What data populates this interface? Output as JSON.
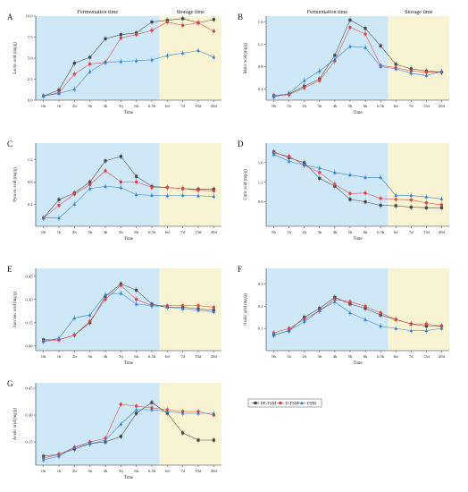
{
  "legend": {
    "series": [
      {
        "name": "PP-FSM",
        "color": "#444444",
        "marker": "square"
      },
      {
        "name": "P-FSM",
        "color": "#e0443e",
        "marker": "circle"
      },
      {
        "name": "FSM",
        "color": "#2f7fd6",
        "marker": "triangle"
      }
    ]
  },
  "chart_data": [
    {
      "type": "line",
      "letter": "A",
      "title": "",
      "xlabel": "Time",
      "ylabel": "Lactic acid (mg/g)",
      "regions": {
        "left": "Fermentation time",
        "right": "Storage time"
      },
      "categories": [
        "0h",
        "1h",
        "2h",
        "3h",
        "4h",
        "5h",
        "6h",
        "6.5h",
        "6d",
        "7d",
        "15d",
        "20d"
      ],
      "ylim": [
        0,
        10.0
      ],
      "yticks": [
        "0.0",
        "2.5",
        "5.0",
        "7.5",
        "10.0"
      ],
      "series": [
        {
          "values": [
            0.5,
            1.2,
            4.4,
            5.1,
            7.3,
            7.8,
            8.0,
            9.3,
            9.5,
            9.7,
            9.2,
            9.6
          ]
        },
        {
          "values": [
            0.5,
            0.9,
            3.1,
            4.3,
            4.5,
            7.4,
            7.8,
            8.3,
            9.3,
            8.9,
            9.2,
            8.2
          ]
        },
        {
          "values": [
            0.5,
            0.8,
            1.3,
            3.4,
            4.5,
            4.6,
            4.7,
            4.8,
            5.3,
            5.6,
            5.9,
            5.1
          ]
        }
      ]
    },
    {
      "type": "line",
      "letter": "B",
      "title": "",
      "xlabel": "Time",
      "ylabel": "Malic acid (mg/g)",
      "regions": {
        "left": "Fermentation time",
        "right": "Storage time"
      },
      "categories": [
        "0h",
        "1h",
        "2h",
        "3h",
        "4h",
        "5h",
        "6h",
        "6.5h",
        "6d",
        "7d",
        "15d",
        "20d"
      ],
      "ylim": [
        0.2,
        1.7
      ],
      "yticks": [
        "0.4",
        "0.8",
        "1.2",
        "1.6"
      ],
      "series": [
        {
          "values": [
            0.28,
            0.31,
            0.45,
            0.58,
            1.0,
            1.63,
            1.48,
            1.17,
            0.84,
            0.76,
            0.72,
            0.7
          ]
        },
        {
          "values": [
            0.27,
            0.3,
            0.42,
            0.55,
            0.9,
            1.5,
            1.38,
            0.82,
            0.78,
            0.72,
            0.7,
            0.7
          ]
        },
        {
          "values": [
            0.26,
            0.32,
            0.55,
            0.72,
            0.93,
            1.16,
            1.14,
            0.8,
            0.76,
            0.68,
            0.64,
            0.71
          ]
        }
      ]
    },
    {
      "type": "line",
      "letter": "C",
      "title": "",
      "xlabel": "Time",
      "ylabel": "Pyruvic acid (mg/g)",
      "regions": {
        "left": "",
        "right": ""
      },
      "categories": [
        "0h",
        "1h",
        "2h",
        "3h",
        "4h",
        "5h",
        "6h",
        "6.5h",
        "6d",
        "7d",
        "15d",
        "20d"
      ],
      "ylim": [
        0,
        1.5
      ],
      "yticks": [
        "0.4",
        "0.8",
        "1.2"
      ],
      "series": [
        {
          "values": [
            0.15,
            0.48,
            0.6,
            0.8,
            1.18,
            1.26,
            0.9,
            0.72,
            0.7,
            0.68,
            0.67,
            0.67
          ]
        },
        {
          "values": [
            0.15,
            0.38,
            0.58,
            0.75,
            1.0,
            0.8,
            0.8,
            0.7,
            0.7,
            0.68,
            0.65,
            0.64
          ]
        },
        {
          "values": [
            0.15,
            0.15,
            0.4,
            0.68,
            0.72,
            0.7,
            0.57,
            0.56,
            0.55,
            0.56,
            0.55,
            0.54
          ]
        }
      ]
    },
    {
      "type": "line",
      "letter": "D",
      "title": "",
      "xlabel": "Time",
      "ylabel": "Citric acid (mg/g)",
      "regions": {
        "left": "",
        "right": ""
      },
      "categories": [
        "0h",
        "1h",
        "2h",
        "3h",
        "4h",
        "5h",
        "6h",
        "6.5h",
        "6d",
        "7d",
        "15d",
        "20d"
      ],
      "ylim": [
        0.3,
        2.0
      ],
      "yticks": [
        "0.8",
        "1.2",
        "1.6"
      ],
      "series": [
        {
          "values": [
            1.82,
            1.7,
            1.6,
            1.28,
            1.12,
            0.85,
            0.8,
            0.73,
            0.72,
            0.69,
            0.68,
            0.68
          ]
        },
        {
          "values": [
            1.8,
            1.73,
            1.55,
            1.4,
            1.16,
            0.97,
            0.98,
            0.87,
            0.85,
            0.84,
            0.78,
            0.74
          ]
        },
        {
          "values": [
            1.77,
            1.63,
            1.55,
            1.49,
            1.4,
            1.35,
            1.3,
            1.3,
            0.93,
            0.93,
            0.9,
            0.86
          ]
        }
      ]
    },
    {
      "type": "line",
      "letter": "E",
      "title": "",
      "xlabel": "Time",
      "ylabel": "Succinic acid (mg/g)",
      "regions": {
        "left": "",
        "right": ""
      },
      "categories": [
        "0h",
        "1h",
        "2h",
        "3h",
        "4h",
        "5h",
        "6h",
        "6.5h",
        "6d",
        "7d",
        "15d",
        "20d"
      ],
      "ylim": [
        -0.03,
        0.5
      ],
      "yticks": [
        "0.00",
        "0.15",
        "0.30",
        "0.45"
      ],
      "series": [
        {
          "values": [
            0.04,
            0.04,
            0.07,
            0.15,
            0.32,
            0.4,
            0.36,
            0.27,
            0.25,
            0.25,
            0.24,
            0.23
          ]
        },
        {
          "values": [
            0.03,
            0.04,
            0.07,
            0.16,
            0.3,
            0.39,
            0.3,
            0.26,
            0.26,
            0.26,
            0.26,
            0.25
          ]
        },
        {
          "values": [
            0.03,
            0.05,
            0.18,
            0.2,
            0.33,
            0.34,
            0.27,
            0.26,
            0.25,
            0.24,
            0.23,
            0.22
          ]
        }
      ]
    },
    {
      "type": "line",
      "letter": "F",
      "title": "",
      "xlabel": "Time",
      "ylabel": "Oxalic acid (mg/g)",
      "regions": {
        "left": "",
        "right": ""
      },
      "categories": [
        "0h",
        "1h",
        "2h",
        "3h",
        "4h",
        "5h",
        "6h",
        "6.5h",
        "6d",
        "7d",
        "15d",
        "20d"
      ],
      "ylim": [
        0.0,
        0.37
      ],
      "yticks": [
        "0.1",
        "0.2",
        "0.3"
      ],
      "series": [
        {
          "values": [
            0.07,
            0.09,
            0.15,
            0.19,
            0.24,
            0.21,
            0.19,
            0.16,
            0.14,
            0.12,
            0.11,
            0.11
          ]
        },
        {
          "values": [
            0.08,
            0.1,
            0.14,
            0.18,
            0.23,
            0.22,
            0.2,
            0.17,
            0.14,
            0.12,
            0.12,
            0.11
          ]
        },
        {
          "values": [
            0.07,
            0.09,
            0.13,
            0.18,
            0.22,
            0.17,
            0.14,
            0.11,
            0.1,
            0.09,
            0.09,
            0.1
          ]
        }
      ]
    },
    {
      "type": "line",
      "letter": "G",
      "title": "",
      "xlabel": "Time",
      "ylabel": "Acetic acid (mg/g)",
      "regions": {
        "left": "",
        "right": ""
      },
      "categories": [
        "0h",
        "1h",
        "2h",
        "3h",
        "4h",
        "5h",
        "6h",
        "6.5h",
        "6d",
        "7d",
        "15d",
        "20d"
      ],
      "ylim": [
        0.02,
        0.48
      ],
      "yticks": [
        "0.15",
        "0.30",
        "0.45"
      ],
      "series": [
        {
          "values": [
            0.07,
            0.08,
            0.11,
            0.14,
            0.15,
            0.18,
            0.31,
            0.37,
            0.31,
            0.2,
            0.16,
            0.16
          ]
        },
        {
          "values": [
            0.06,
            0.08,
            0.12,
            0.15,
            0.17,
            0.36,
            0.35,
            0.34,
            0.33,
            0.32,
            0.32,
            0.3
          ]
        },
        {
          "values": [
            0.05,
            0.07,
            0.12,
            0.14,
            0.16,
            0.25,
            0.33,
            0.33,
            0.32,
            0.31,
            0.31,
            0.31
          ]
        }
      ]
    }
  ]
}
